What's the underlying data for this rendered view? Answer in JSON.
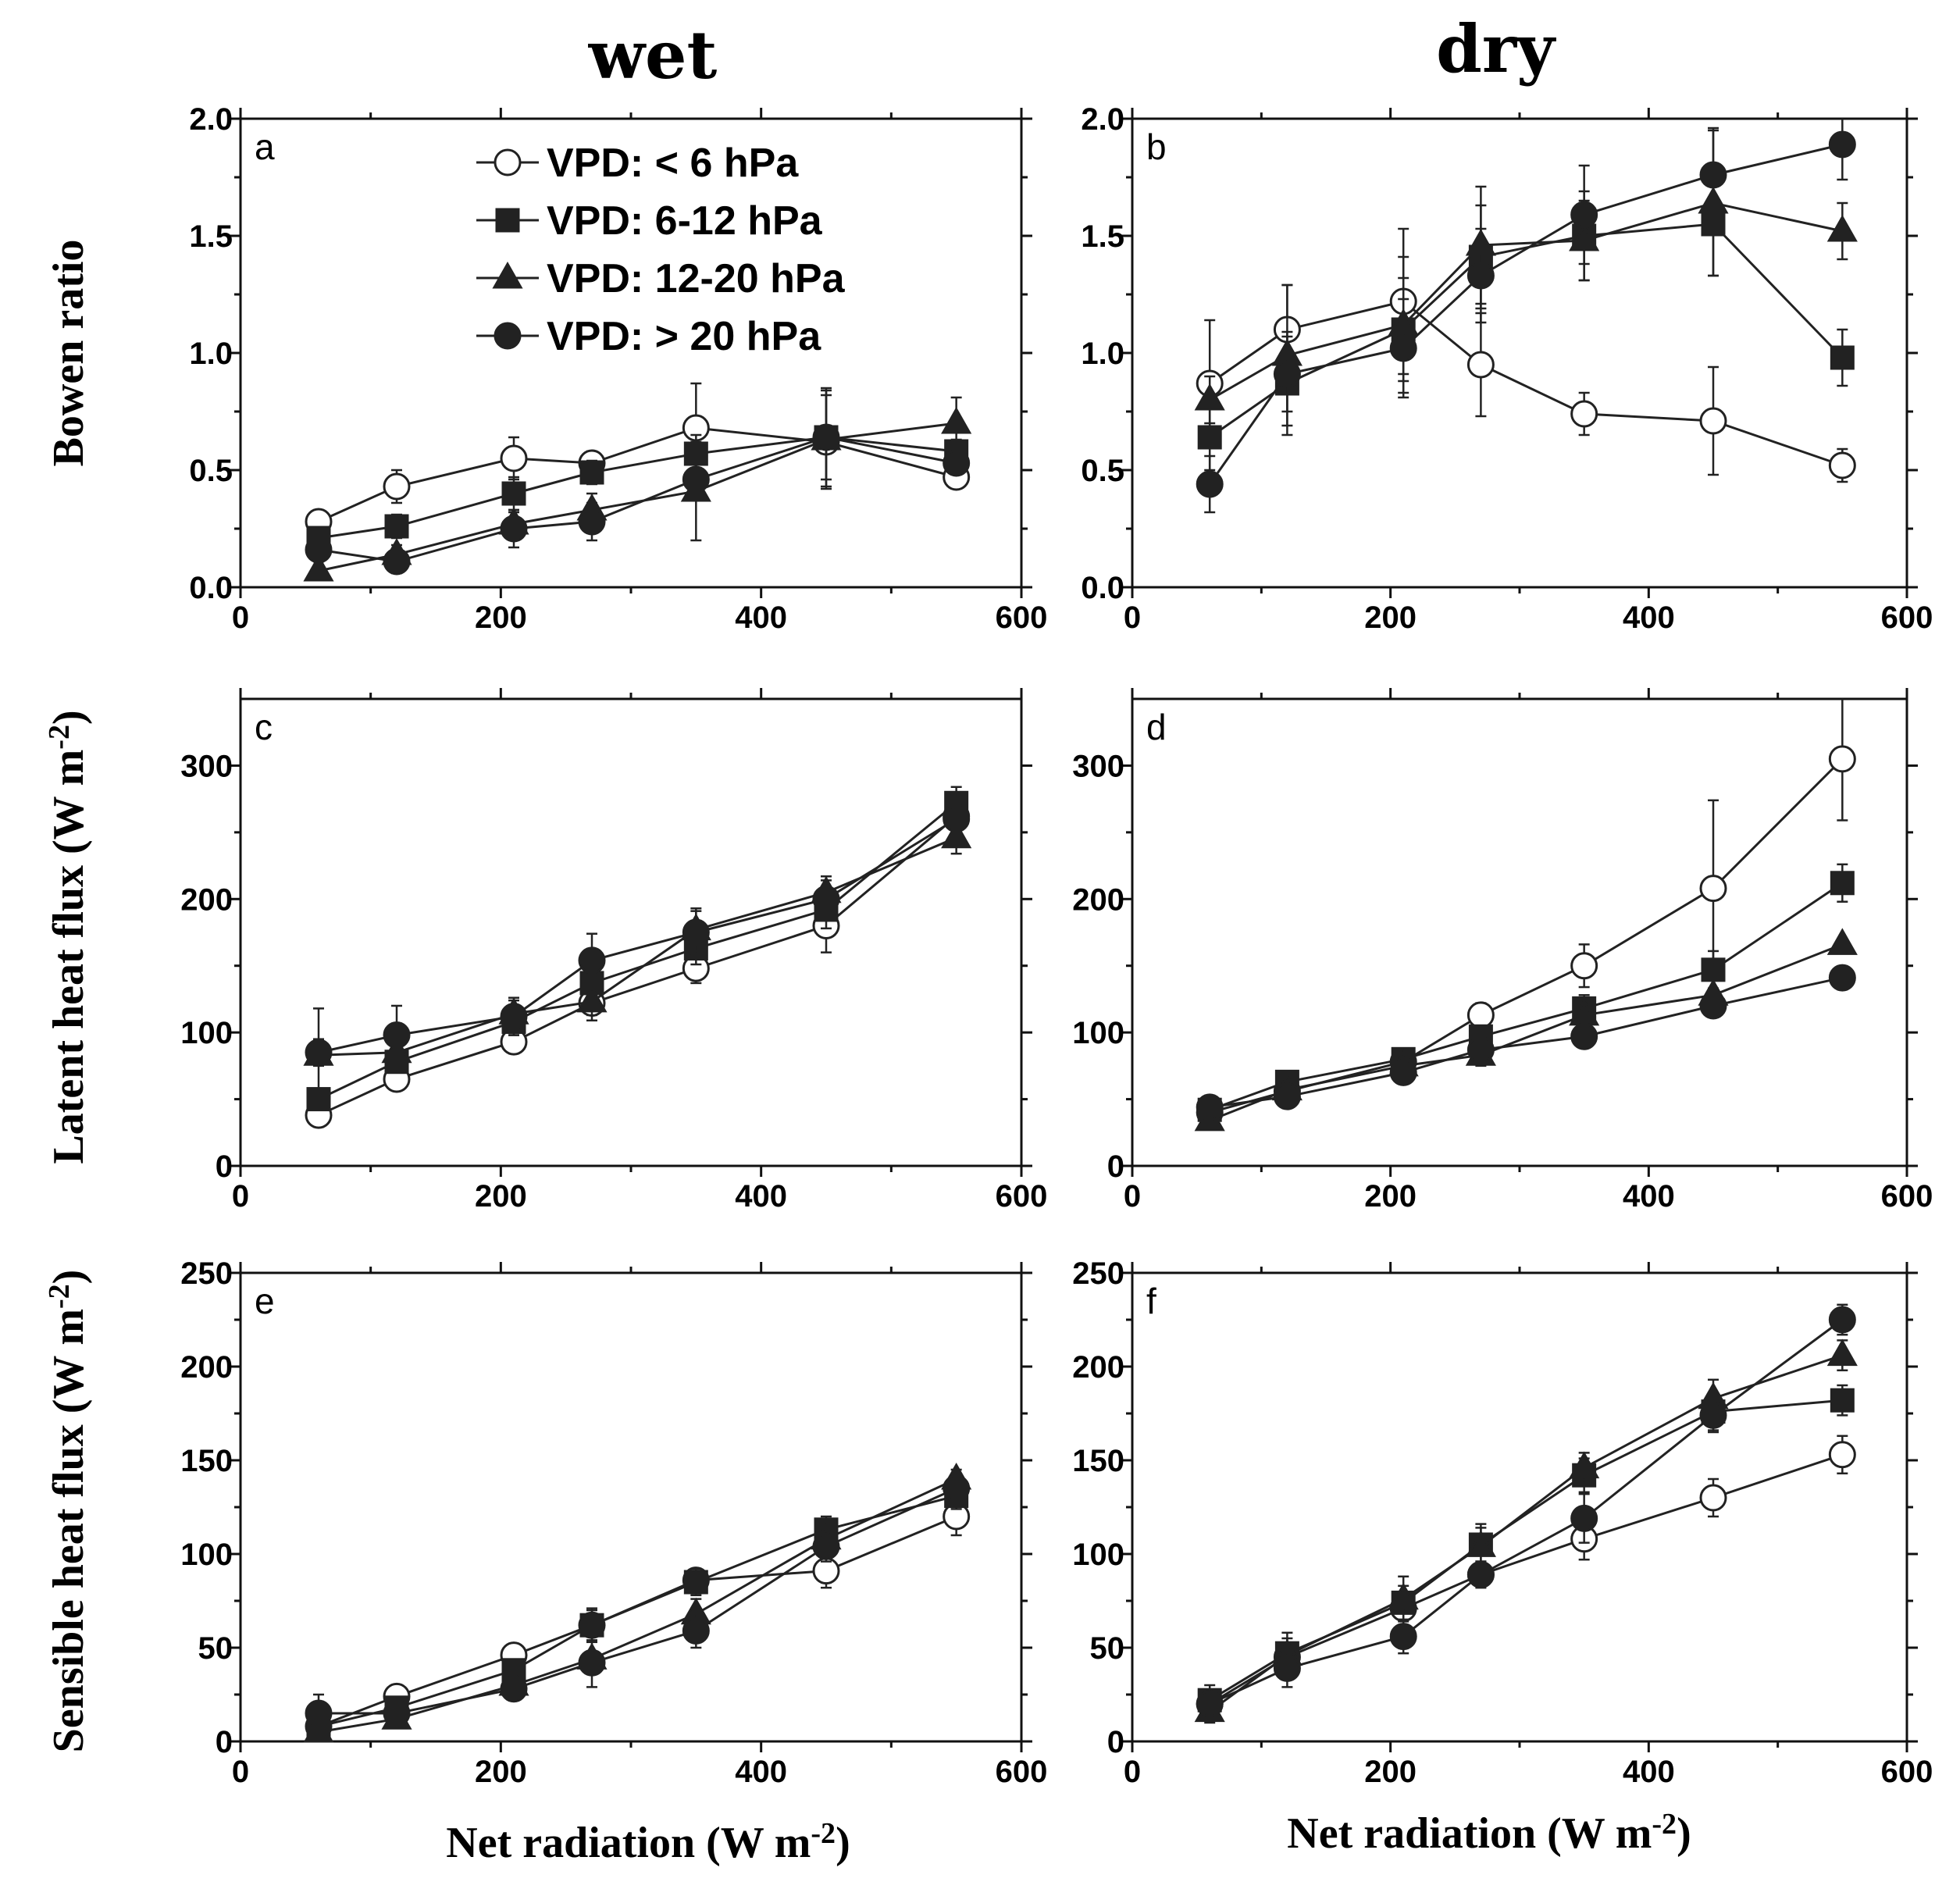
{
  "column_titles": [
    "wet",
    "dry"
  ],
  "row_labels": {
    "bowen": "Bowen ratio",
    "latent": "Latent heat flux (W m",
    "sensible": "Sensible heat flux (W m",
    "unit_superscript": "-2",
    "unit_close": ")"
  },
  "x_axis": {
    "label": "Net radiation (W m",
    "superscript": "-2",
    "close": ")",
    "range": [
      0,
      600
    ],
    "ticks": [
      0,
      200,
      400,
      600
    ]
  },
  "legend": [
    {
      "marker": "open-circle",
      "label": "VPD: < 6 hPa"
    },
    {
      "marker": "filled-square",
      "label": "VPD: 6-12 hPa"
    },
    {
      "marker": "filled-triangle",
      "label": "VPD: 12-20 hPa"
    },
    {
      "marker": "filled-circle",
      "label": "VPD: > 20 hPa"
    }
  ],
  "colors": {
    "line": "#222222",
    "axis": "#111111",
    "open_fill": "#ffffff"
  },
  "chart_data": [
    {
      "type": "line",
      "panel": "a",
      "column": "wet",
      "row": "bowen",
      "x": [
        60,
        120,
        210,
        270,
        350,
        450,
        550
      ],
      "ylim": [
        0,
        2.0
      ],
      "yticks": [
        "0.0",
        "0.5",
        "1.0",
        "1.5",
        "2.0"
      ],
      "series": [
        {
          "name": "VPD: < 6 hPa",
          "values": [
            0.28,
            0.43,
            0.55,
            0.53,
            0.68,
            0.62,
            0.47
          ],
          "err": [
            0.03,
            0.07,
            0.09,
            0.05,
            0.19,
            0.05,
            0.03
          ]
        },
        {
          "name": "VPD: 6-12 hPa",
          "values": [
            0.21,
            0.26,
            0.4,
            0.49,
            0.57,
            0.64,
            0.58
          ],
          "err": [
            0.03,
            0.05,
            0.07,
            0.05,
            0.08,
            0.21,
            0.05
          ]
        },
        {
          "name": "VPD: 12-20 hPa",
          "values": [
            0.07,
            0.14,
            0.27,
            0.33,
            0.41,
            0.63,
            0.7
          ],
          "err": [
            0.04,
            0.04,
            0.05,
            0.07,
            0.21,
            0.21,
            0.11
          ]
        },
        {
          "name": "VPD: > 20 hPa",
          "values": [
            0.16,
            0.11,
            0.25,
            0.28,
            0.46,
            0.64,
            0.53
          ],
          "err": [
            0.05,
            0.05,
            0.08,
            0.08,
            0.07,
            0.18,
            0.04
          ]
        }
      ]
    },
    {
      "type": "line",
      "panel": "b",
      "column": "dry",
      "row": "bowen",
      "x": [
        60,
        120,
        210,
        270,
        350,
        450,
        550
      ],
      "ylim": [
        0,
        2.0
      ],
      "yticks": [
        "0.0",
        "0.5",
        "1.0",
        "1.5",
        "2.0"
      ],
      "series": [
        {
          "name": "VPD: < 6 hPa",
          "values": [
            0.87,
            1.1,
            1.22,
            0.95,
            0.74,
            0.71,
            0.52
          ],
          "err": [
            0.27,
            0.19,
            0.31,
            0.22,
            0.09,
            0.23,
            0.07
          ]
        },
        {
          "name": "VPD: 6-12 hPa",
          "values": [
            0.64,
            0.87,
            1.1,
            1.41,
            1.5,
            1.55,
            0.98
          ],
          "err": [
            0.14,
            0.22,
            0.22,
            0.22,
            0.19,
            0.22,
            0.12
          ]
        },
        {
          "name": "VPD: 12-20 hPa",
          "values": [
            0.8,
            0.99,
            1.12,
            1.46,
            1.48,
            1.64,
            1.52
          ],
          "err": [
            0.1,
            0.3,
            0.29,
            0.25,
            0.17,
            0.31,
            0.12
          ]
        },
        {
          "name": "VPD: > 20 hPa",
          "values": [
            0.44,
            0.91,
            1.02,
            1.33,
            1.59,
            1.76,
            1.89
          ],
          "err": [
            0.12,
            0.16,
            0.21,
            0.2,
            0.21,
            0.2,
            0.15
          ]
        }
      ]
    },
    {
      "type": "line",
      "panel": "c",
      "column": "wet",
      "row": "latent",
      "x": [
        60,
        120,
        210,
        270,
        350,
        450,
        550
      ],
      "ylim": [
        0,
        350
      ],
      "yticks": [
        "0",
        "100",
        "200",
        "300"
      ],
      "series": [
        {
          "name": "VPD: < 6 hPa",
          "values": [
            38,
            65,
            93,
            122,
            148,
            180,
            262
          ],
          "err": [
            6,
            6,
            6,
            9,
            11,
            20,
            12
          ]
        },
        {
          "name": "VPD: 6-12 hPa",
          "values": [
            50,
            78,
            108,
            137,
            163,
            192,
            272
          ],
          "err": [
            6,
            8,
            10,
            12,
            12,
            14,
            12
          ]
        },
        {
          "name": "VPD: 12-20 hPa",
          "values": [
            83,
            85,
            114,
            123,
            177,
            205,
            246
          ],
          "err": [
            35,
            12,
            10,
            14,
            16,
            12,
            12
          ]
        },
        {
          "name": "VPD: > 20 hPa",
          "values": [
            85,
            98,
            112,
            154,
            175,
            200,
            260
          ],
          "err": [
            10,
            22,
            14,
            20,
            16,
            14,
            10
          ]
        }
      ]
    },
    {
      "type": "line",
      "panel": "d",
      "column": "dry",
      "row": "latent",
      "x": [
        60,
        120,
        210,
        270,
        350,
        450,
        550
      ],
      "ylim": [
        0,
        350
      ],
      "yticks": [
        "0",
        "100",
        "200",
        "300"
      ],
      "series": [
        {
          "name": "VPD: < 6 hPa",
          "values": [
            40,
            56,
            78,
            113,
            150,
            208,
            305
          ],
          "err": [
            4,
            4,
            6,
            9,
            16,
            66,
            46
          ]
        },
        {
          "name": "VPD: 6-12 hPa",
          "values": [
            42,
            63,
            80,
            97,
            118,
            147,
            212
          ],
          "err": [
            4,
            5,
            6,
            8,
            10,
            14,
            14
          ]
        },
        {
          "name": "VPD: 12-20 hPa",
          "values": [
            34,
            57,
            75,
            83,
            113,
            128,
            166
          ],
          "err": [
            4,
            4,
            6,
            8,
            8,
            12,
            4
          ]
        },
        {
          "name": "VPD: > 20 hPa",
          "values": [
            44,
            52,
            70,
            87,
            97,
            120,
            141
          ],
          "err": [
            4,
            4,
            6,
            8,
            8,
            8,
            4
          ]
        }
      ]
    },
    {
      "type": "line",
      "panel": "e",
      "column": "wet",
      "row": "sensible",
      "x": [
        60,
        120,
        210,
        270,
        350,
        450,
        550
      ],
      "ylim": [
        0,
        250
      ],
      "yticks": [
        "0",
        "50",
        "100",
        "150",
        "200",
        "250"
      ],
      "series": [
        {
          "name": "VPD: < 6 hPa",
          "values": [
            8,
            24,
            46,
            62,
            86,
            91,
            120
          ],
          "err": [
            3,
            4,
            4,
            8,
            6,
            9,
            10
          ]
        },
        {
          "name": "VPD: 6-12 hPa",
          "values": [
            8,
            18,
            38,
            62,
            85,
            113,
            131
          ],
          "err": [
            3,
            4,
            5,
            9,
            7,
            7,
            7
          ]
        },
        {
          "name": "VPD: 12-20 hPa",
          "values": [
            5,
            12,
            30,
            44,
            68,
            108,
            140
          ],
          "err": [
            3,
            4,
            4,
            15,
            8,
            8,
            5
          ]
        },
        {
          "name": "VPD: > 20 hPa",
          "values": [
            15,
            15,
            28,
            42,
            59,
            104,
            135
          ],
          "err": [
            10,
            5,
            6,
            6,
            9,
            8,
            5
          ]
        }
      ]
    },
    {
      "type": "line",
      "panel": "f",
      "column": "dry",
      "row": "sensible",
      "x": [
        60,
        120,
        210,
        270,
        350,
        450,
        550
      ],
      "ylim": [
        0,
        250
      ],
      "yticks": [
        "0",
        "50",
        "100",
        "150",
        "200",
        "250"
      ],
      "series": [
        {
          "name": "VPD: < 6 hPa",
          "values": [
            20,
            45,
            71,
            89,
            108,
            130,
            153
          ],
          "err": [
            4,
            5,
            6,
            6,
            11,
            10,
            10
          ]
        },
        {
          "name": "VPD: 6-12 hPa",
          "values": [
            22,
            47,
            74,
            105,
            142,
            176,
            182
          ],
          "err": [
            8,
            8,
            9,
            9,
            9,
            10,
            8
          ]
        },
        {
          "name": "VPD: 12-20 hPa",
          "values": [
            16,
            46,
            76,
            104,
            146,
            183,
            206
          ],
          "err": [
            6,
            12,
            12,
            12,
            8,
            10,
            8
          ]
        },
        {
          "name": "VPD: > 20 hPa",
          "values": [
            20,
            39,
            56,
            89,
            119,
            174,
            225
          ],
          "err": [
            5,
            10,
            9,
            7,
            13,
            9,
            8
          ]
        }
      ]
    }
  ]
}
